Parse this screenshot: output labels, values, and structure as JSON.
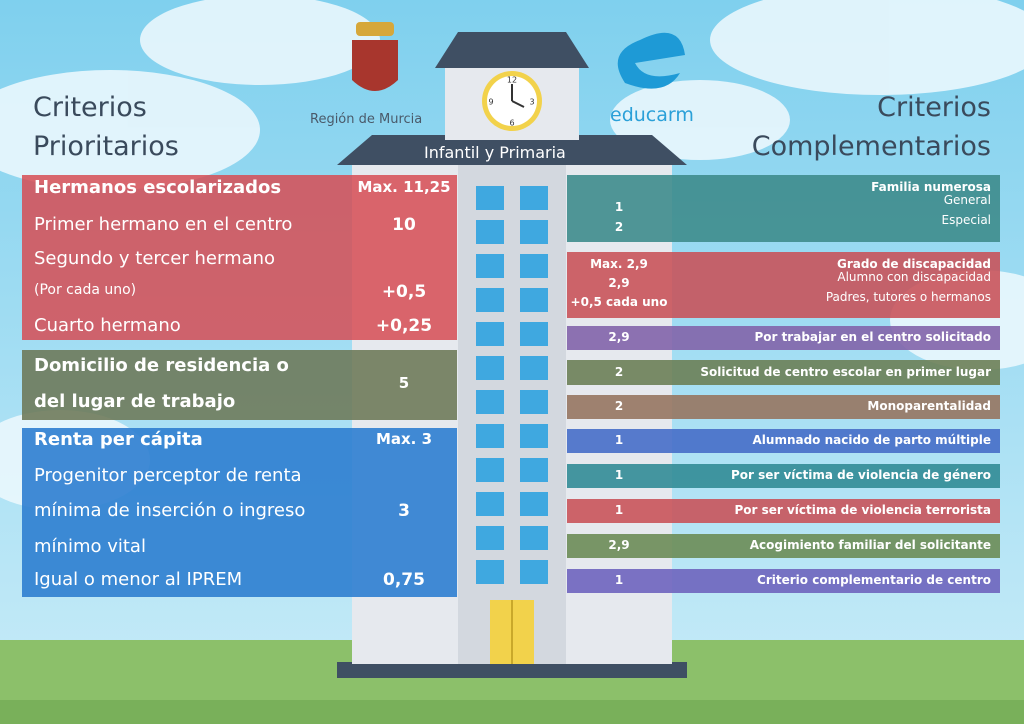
{
  "header": {
    "left_title": [
      "Criterios",
      "Prioritarios"
    ],
    "right_title": [
      "Criterios",
      "Complementarios"
    ],
    "region": "Región de Murcia",
    "brand": "educarm",
    "building_sign": "Infantil y Primaria",
    "clock": [
      "12",
      "3",
      "6",
      "9"
    ]
  },
  "prioritarios": [
    {
      "title": [
        "Hermanos escolarizados"
      ],
      "score": "Max. 11,25",
      "rows": [
        {
          "label": "Primer hermano en el centro",
          "score": "10"
        },
        {
          "label": "Segundo y tercer hermano"
        },
        {
          "label": "(Por cada uno)",
          "score": "+0,5"
        },
        {
          "label": "Cuarto hermano",
          "score": "+0,25"
        }
      ]
    },
    {
      "title": [
        "Domicilio de residencia o",
        "del lugar de trabajo"
      ],
      "score": "5",
      "rows": []
    },
    {
      "title": [
        "Renta per cápita"
      ],
      "score": "Max. 3",
      "rows": [
        {
          "label": "Progenitor perceptor de renta"
        },
        {
          "label": "mínima de inserción o ingreso",
          "score": "3"
        },
        {
          "label": "mínimo vital"
        },
        {
          "label": "Igual o menor al IPREM",
          "score": "0,75"
        }
      ]
    }
  ],
  "complementarios": [
    {
      "title": "Familia numerosa",
      "scores": [
        "1",
        "2"
      ],
      "items": [
        "General",
        "Especial"
      ]
    },
    {
      "title": "Grado de discapacidad",
      "scores": [
        "Max. 2,9",
        "2,9",
        "+0,5 cada uno"
      ],
      "items": [
        "Alumno con discapacidad",
        "Padres, tutores o hermanos"
      ]
    },
    {
      "title": "Por trabajar en el centro solicitado",
      "scores": [
        "2,9"
      ]
    },
    {
      "title": "Solicitud de centro escolar en primer lugar",
      "scores": [
        "2"
      ]
    },
    {
      "title": "Monoparentalidad",
      "scores": [
        "2"
      ]
    },
    {
      "title": "Alumnado nacido de parto múltiple",
      "scores": [
        "1"
      ]
    },
    {
      "title": "Por ser víctima de violencia de género",
      "scores": [
        "1"
      ]
    },
    {
      "title": "Por ser víctima de violencia terrorista",
      "scores": [
        "1"
      ]
    },
    {
      "title": "Acogimiento familiar del solicitante",
      "scores": [
        "2,9"
      ]
    },
    {
      "title": "Criterio complementario de centro",
      "scores": [
        "1"
      ]
    }
  ]
}
